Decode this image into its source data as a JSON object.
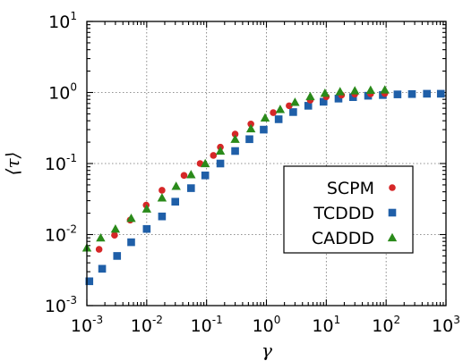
{
  "chart_data": {
    "type": "scatter",
    "title": "",
    "xlabel": "γ",
    "ylabel": "⟨τ⟩",
    "xscale": "log",
    "yscale": "log",
    "xlim": [
      0.001,
      1000
    ],
    "ylim": [
      0.001,
      10
    ],
    "grid": true,
    "legend": "center-right",
    "x_ticks": [
      {
        "base": "10",
        "exp": "-3",
        "value": 0.001
      },
      {
        "base": "10",
        "exp": "-2",
        "value": 0.01
      },
      {
        "base": "10",
        "exp": "-1",
        "value": 0.1
      },
      {
        "base": "10",
        "exp": "0",
        "value": 1
      },
      {
        "base": "10",
        "exp": "1",
        "value": 10
      },
      {
        "base": "10",
        "exp": "2",
        "value": 100
      },
      {
        "base": "10",
        "exp": "3",
        "value": 1000
      }
    ],
    "y_ticks": [
      {
        "base": "10",
        "exp": "-3",
        "value": 0.001
      },
      {
        "base": "10",
        "exp": "-2",
        "value": 0.01
      },
      {
        "base": "10",
        "exp": "-1",
        "value": 0.1
      },
      {
        "base": "10",
        "exp": "0",
        "value": 1
      },
      {
        "base": "10",
        "exp": "1",
        "value": 10
      }
    ],
    "series": [
      {
        "name": "SCPM",
        "marker": "circle",
        "color": "#d62728",
        "points": [
          [
            0.0016,
            0.0062
          ],
          [
            0.0029,
            0.0098
          ],
          [
            0.0053,
            0.016
          ],
          [
            0.0098,
            0.026
          ],
          [
            0.018,
            0.042
          ],
          [
            0.042,
            0.068
          ],
          [
            0.078,
            0.1
          ],
          [
            0.13,
            0.13
          ],
          [
            0.17,
            0.17
          ],
          [
            0.3,
            0.26
          ],
          [
            0.55,
            0.36
          ],
          [
            1.3,
            0.52
          ],
          [
            2.4,
            0.65
          ],
          [
            5.4,
            0.78
          ],
          [
            10,
            0.87
          ],
          [
            18,
            0.92
          ],
          [
            30,
            0.95
          ],
          [
            55,
            0.96
          ],
          [
            95,
            0.97
          ]
        ]
      },
      {
        "name": "TCDDD",
        "marker": "square",
        "color": "#1f5fa8",
        "points": [
          [
            0.0011,
            0.0022
          ],
          [
            0.0018,
            0.0033
          ],
          [
            0.0032,
            0.005
          ],
          [
            0.0055,
            0.0078
          ],
          [
            0.01,
            0.012
          ],
          [
            0.018,
            0.018
          ],
          [
            0.03,
            0.029
          ],
          [
            0.055,
            0.045
          ],
          [
            0.095,
            0.068
          ],
          [
            0.17,
            0.1
          ],
          [
            0.3,
            0.15
          ],
          [
            0.52,
            0.22
          ],
          [
            0.9,
            0.3
          ],
          [
            1.6,
            0.42
          ],
          [
            2.8,
            0.53
          ],
          [
            5,
            0.65
          ],
          [
            9,
            0.74
          ],
          [
            16,
            0.82
          ],
          [
            28,
            0.86
          ],
          [
            50,
            0.9
          ],
          [
            88,
            0.92
          ],
          [
            155,
            0.94
          ],
          [
            270,
            0.95
          ],
          [
            480,
            0.96
          ],
          [
            820,
            0.96
          ]
        ]
      },
      {
        "name": "CADDD",
        "marker": "triangle",
        "color": "#2a8a1a",
        "points": [
          [
            0.001,
            0.0065
          ],
          [
            0.0017,
            0.009
          ],
          [
            0.003,
            0.012
          ],
          [
            0.0055,
            0.017
          ],
          [
            0.01,
            0.023
          ],
          [
            0.018,
            0.033
          ],
          [
            0.031,
            0.048
          ],
          [
            0.055,
            0.07
          ],
          [
            0.095,
            0.1
          ],
          [
            0.17,
            0.15
          ],
          [
            0.3,
            0.22
          ],
          [
            0.55,
            0.31
          ],
          [
            0.95,
            0.44
          ],
          [
            1.7,
            0.58
          ],
          [
            3,
            0.73
          ],
          [
            5.4,
            0.88
          ],
          [
            9.5,
            0.98
          ],
          [
            17,
            1.03
          ],
          [
            30,
            1.06
          ],
          [
            55,
            1.08
          ],
          [
            95,
            1.09
          ]
        ]
      }
    ]
  }
}
